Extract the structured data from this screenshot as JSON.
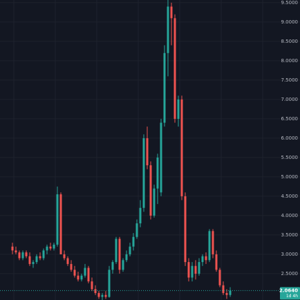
{
  "chart_data": {
    "type": "candlestick",
    "ylim": [
      1.82,
      9.57
    ],
    "yticks": [
      {
        "value": 9.5,
        "label": "9.5000"
      },
      {
        "value": 9,
        "label": "9.0000"
      },
      {
        "value": 8.5,
        "label": "8.5000"
      },
      {
        "value": 8,
        "label": "8.0000"
      },
      {
        "value": 7.5,
        "label": "7.5000"
      },
      {
        "value": 7,
        "label": "7.0000"
      },
      {
        "value": 6.5,
        "label": "6.5000"
      },
      {
        "value": 6,
        "label": "6.0000"
      },
      {
        "value": 5.5,
        "label": "5.5000"
      },
      {
        "value": 5,
        "label": "5.0000"
      },
      {
        "value": 4.5,
        "label": "4.5000"
      },
      {
        "value": 4,
        "label": "4.0000"
      },
      {
        "value": 3.5,
        "label": "3.5000"
      },
      {
        "value": 3,
        "label": "3.0000"
      },
      {
        "value": 2.5,
        "label": "2.5000"
      }
    ],
    "grid": true,
    "up_color": "#26a69a",
    "down_color": "#ef5350",
    "open": [
      3.2,
      3.1,
      3.05,
      2.9,
      3.05,
      2.95,
      2.75,
      2.8,
      2.95,
      2.9,
      3.1,
      3.2,
      3.15,
      3.25,
      4.55,
      3.0,
      2.9,
      2.75,
      2.6,
      2.45,
      2.35,
      2.45,
      2.65,
      2.3,
      2.1,
      2.0,
      1.9,
      1.95,
      1.9,
      2.6,
      2.8,
      3.4,
      2.6,
      2.85,
      3.0,
      3.2,
      3.45,
      3.8,
      4.2,
      6.0,
      5.3,
      4.0,
      4.7,
      4.6,
      6.4,
      8.2,
      9.4,
      9.1,
      6.5,
      7.0,
      4.5,
      2.8,
      2.4,
      2.7,
      2.5,
      2.8,
      2.95,
      2.85,
      3.6,
      3.0,
      2.6,
      2.2,
      2.0,
      1.95
    ],
    "high": [
      3.3,
      3.2,
      3.1,
      3.1,
      3.1,
      3.05,
      2.85,
      3.0,
      3.05,
      3.15,
      3.25,
      3.3,
      3.3,
      4.75,
      4.6,
      3.1,
      2.95,
      2.85,
      2.7,
      2.55,
      2.5,
      2.75,
      2.7,
      2.4,
      2.2,
      2.05,
      2.0,
      2.05,
      2.7,
      2.85,
      3.45,
      3.45,
      2.9,
      3.1,
      3.3,
      3.55,
      3.9,
      4.4,
      6.1,
      6.3,
      5.4,
      4.8,
      5.6,
      6.5,
      8.4,
      9.57,
      9.5,
      9.2,
      7.1,
      7.1,
      4.6,
      2.9,
      2.8,
      2.85,
      2.9,
      3.0,
      3.05,
      3.65,
      3.65,
      3.1,
      2.65,
      2.3,
      2.1,
      2.15
    ],
    "low": [
      3.0,
      3.0,
      2.85,
      2.85,
      2.9,
      2.7,
      2.65,
      2.75,
      2.85,
      2.85,
      3.0,
      3.1,
      3.1,
      3.2,
      3.0,
      2.85,
      2.7,
      2.55,
      2.4,
      2.3,
      2.3,
      2.4,
      2.25,
      2.05,
      1.95,
      1.85,
      1.82,
      1.85,
      1.88,
      2.5,
      2.75,
      2.5,
      2.55,
      2.8,
      2.95,
      3.1,
      3.4,
      3.7,
      4.1,
      5.2,
      3.9,
      3.95,
      4.3,
      4.5,
      6.3,
      7.6,
      8.4,
      6.4,
      6.3,
      4.4,
      2.7,
      2.3,
      2.3,
      2.35,
      2.45,
      2.7,
      2.75,
      2.8,
      2.9,
      2.55,
      2.15,
      1.95,
      1.85,
      1.9
    ],
    "close": [
      3.1,
      3.05,
      2.9,
      3.05,
      2.95,
      2.75,
      2.8,
      2.95,
      2.9,
      3.1,
      3.2,
      3.15,
      3.25,
      4.55,
      3.0,
      2.9,
      2.75,
      2.6,
      2.45,
      2.35,
      2.45,
      2.65,
      2.3,
      2.1,
      2.0,
      1.9,
      1.95,
      1.9,
      2.6,
      2.8,
      3.4,
      2.6,
      2.85,
      3.0,
      3.2,
      3.45,
      3.8,
      4.2,
      6.0,
      5.3,
      4.0,
      4.7,
      5.5,
      6.4,
      8.2,
      9.4,
      9.1,
      6.5,
      7.0,
      4.5,
      2.8,
      2.4,
      2.7,
      2.5,
      2.8,
      2.95,
      2.85,
      3.6,
      3.0,
      2.6,
      2.2,
      2.0,
      1.95,
      2.064
    ],
    "last_price": 2.064,
    "last_price_label": "2.0640",
    "countdown": "1d 4h"
  }
}
